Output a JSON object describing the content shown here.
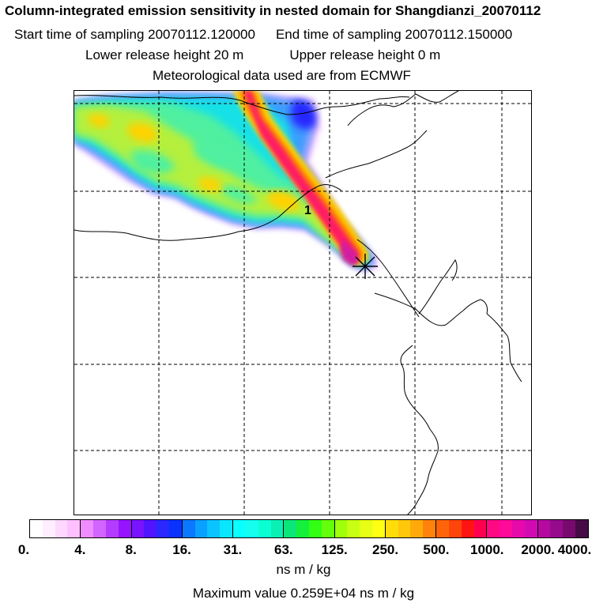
{
  "header": {
    "title": "Column-integrated emission sensitivity in nested domain for Shangdianzi_20070112",
    "start_label": "Start time of sampling 20070112.120000",
    "end_label": "End time of sampling 20070112.150000",
    "lower_release": "Lower release height   20 m",
    "upper_release": "Upper release height    0 m",
    "met_data": "Meteorological data used are from ECMWF"
  },
  "map": {
    "release_marker_label": "1",
    "plume_palette": [
      "#ffe6ff",
      "#c8aaff",
      "#3c9bff",
      "#14e1e6",
      "#50f0a0",
      "#b4f03c",
      "#ffd200",
      "#ff8c00",
      "#ff1e64",
      "#d21ea0"
    ]
  },
  "colorbar": {
    "ticks": [
      "0.",
      "4.",
      "8.",
      "16.",
      "31.",
      "63.",
      "125.",
      "250.",
      "500.",
      "1000.",
      "2000.",
      "4000."
    ],
    "segments": [
      [
        "#ffffff",
        "#ffeeff",
        "#ffd8ff",
        "#ffc0ff"
      ],
      [
        "#f08cff",
        "#d264ff",
        "#b43cff",
        "#9614ff"
      ],
      [
        "#7814ff",
        "#5014ff",
        "#2828ff",
        "#0a32ff"
      ],
      [
        "#0a78ff",
        "#0aa0ff",
        "#0ac3ff",
        "#0ae6ff"
      ],
      [
        "#0affff",
        "#14fff0",
        "#0affd2",
        "#0af0b4"
      ],
      [
        "#0ae678",
        "#14f03c",
        "#32ff14",
        "#64ff0a"
      ],
      [
        "#a0ff0a",
        "#c8ff14",
        "#e6ff14",
        "#ffff14"
      ],
      [
        "#ffdc0a",
        "#ffc80a",
        "#ffaa0a",
        "#ff820a"
      ],
      [
        "#ff640a",
        "#ff460a",
        "#ff1414",
        "#ff0050"
      ],
      [
        "#ff0a82",
        "#ff0a9b",
        "#e60aaa",
        "#d20ab4"
      ],
      [
        "#b40aa0",
        "#960a8c",
        "#780a6e",
        "#460a46"
      ]
    ],
    "unit_label": "ns m / kg",
    "max_value_label": "Maximum value  0.259E+04 ns m / kg"
  }
}
